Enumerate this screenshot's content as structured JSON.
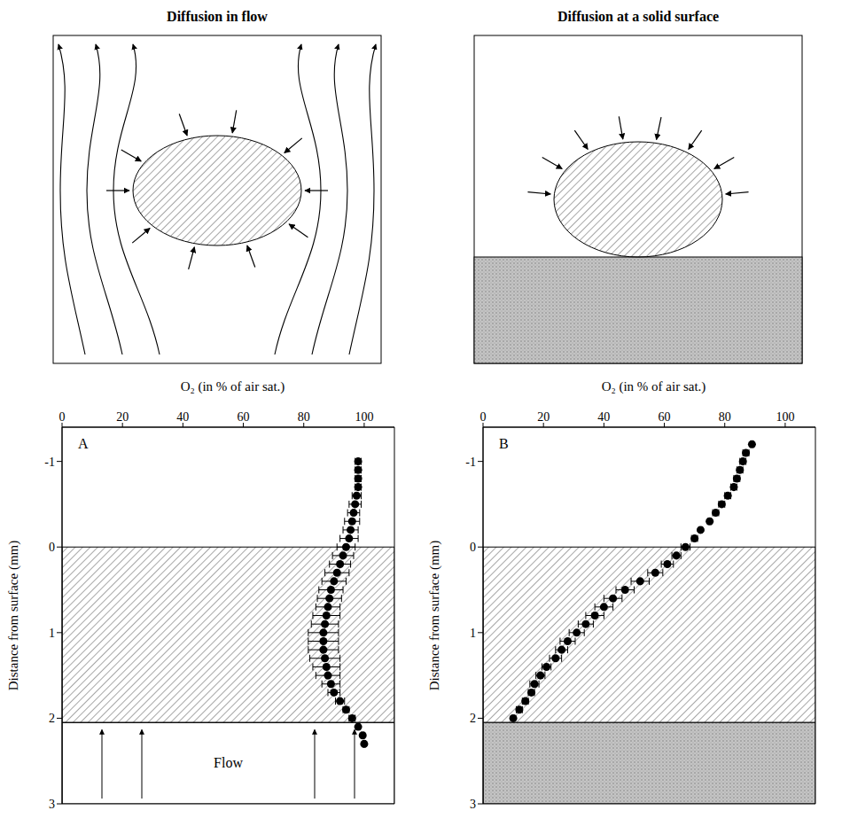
{
  "chart_data": [
    {
      "type": "scatter",
      "title": "Diffusion in flow",
      "panel": "A",
      "x_label": "O₂ (in % of air sat.)",
      "y_label": "Distance from surface (mm)",
      "xlim": [
        0,
        110
      ],
      "xticks": [
        0,
        20,
        40,
        60,
        80,
        100
      ],
      "ylim": [
        -1.4,
        3
      ],
      "yticks": [
        -1,
        0,
        1,
        2,
        3
      ],
      "marker": "circle",
      "color": "#000000",
      "hatched": [
        0,
        2.05
      ],
      "flow_region": [
        2.05,
        3
      ],
      "annotation": "Flow",
      "y": [
        -1,
        -0.9,
        -0.8,
        -0.7,
        -0.6,
        -0.5,
        -0.4,
        -0.3,
        -0.2,
        -0.1,
        0,
        0.1,
        0.2,
        0.3,
        0.4,
        0.5,
        0.6,
        0.7,
        0.8,
        0.9,
        1,
        1.1,
        1.2,
        1.3,
        1.4,
        1.5,
        1.6,
        1.7,
        1.8,
        1.9,
        2,
        2.1,
        2.2,
        2.3
      ],
      "x": [
        98,
        98,
        98,
        98,
        97.5,
        97,
        96.5,
        96,
        95.5,
        95,
        94,
        93,
        92,
        91,
        90,
        89,
        88.5,
        88,
        87.5,
        87,
        86.5,
        86.5,
        86.5,
        87,
        87.5,
        88,
        89,
        90,
        92,
        94,
        96,
        98,
        99.5,
        100
      ],
      "x_error": [
        1,
        1,
        1,
        1,
        1.5,
        2,
        2,
        2.5,
        2.5,
        3,
        3,
        3.5,
        3.5,
        4,
        4,
        4,
        4,
        4,
        4.5,
        4.5,
        5,
        5,
        5,
        5,
        4.5,
        4,
        3,
        2,
        1.5,
        1,
        1,
        0.5,
        0.5,
        0.5
      ]
    },
    {
      "type": "scatter",
      "title": "Diffusion at a solid surface",
      "panel": "B",
      "x_label": "O₂ (in % of air sat.)",
      "y_label": "Distance from surface (mm)",
      "xlim": [
        0,
        110
      ],
      "xticks": [
        0,
        20,
        40,
        60,
        80,
        100
      ],
      "ylim": [
        -1.4,
        3
      ],
      "yticks": [
        -1,
        0,
        1,
        2,
        3
      ],
      "marker": "circle",
      "color": "#000000",
      "hatched": [
        0,
        2.05
      ],
      "substratum": [
        2.05,
        3
      ],
      "y": [
        -1.2,
        -1.1,
        -1,
        -0.9,
        -0.8,
        -0.7,
        -0.6,
        -0.5,
        -0.4,
        -0.3,
        -0.2,
        -0.1,
        0,
        0.1,
        0.2,
        0.3,
        0.4,
        0.5,
        0.6,
        0.7,
        0.8,
        0.9,
        1,
        1.1,
        1.2,
        1.3,
        1.4,
        1.5,
        1.6,
        1.7,
        1.8,
        1.9,
        2
      ],
      "x": [
        89,
        87,
        86,
        85,
        84,
        83,
        81,
        79,
        77,
        75,
        72,
        70,
        67,
        64,
        61,
        57,
        52,
        47,
        43,
        40,
        37,
        34,
        31,
        28,
        26,
        24,
        21,
        19,
        17,
        16,
        14,
        12,
        10
      ],
      "x_error": [
        0.5,
        1,
        1,
        1,
        1,
        1,
        1,
        1,
        1,
        0.5,
        0.5,
        1,
        1.5,
        1.5,
        2,
        2.5,
        3,
        3,
        3,
        3,
        3,
        2.5,
        2.5,
        2.5,
        2,
        2,
        1.5,
        1.5,
        1.5,
        1,
        1,
        1,
        0.5
      ]
    }
  ]
}
